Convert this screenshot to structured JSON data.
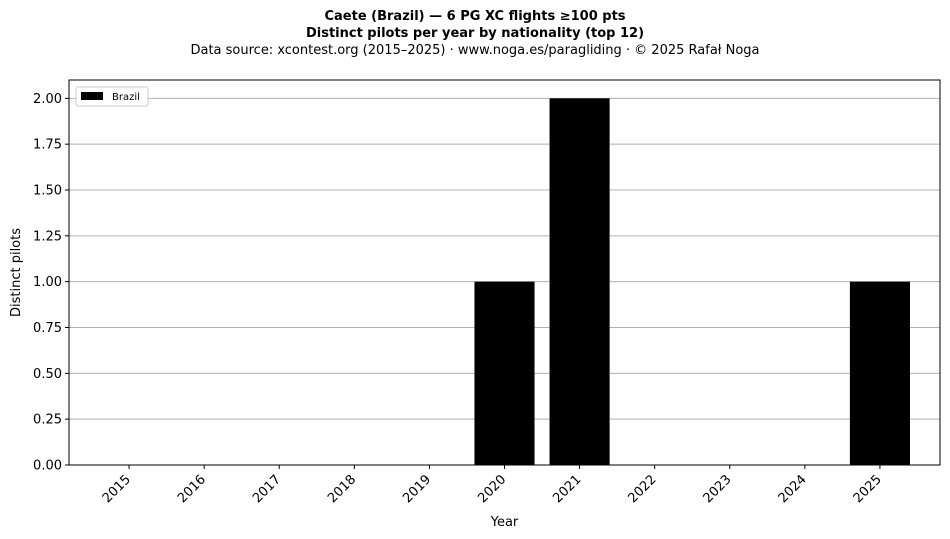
{
  "chart_data": {
    "type": "bar",
    "title": "Caete (Brazil)  —  6 PG XC flights ≥100 pts",
    "subtitle": "Distinct pilots per year by nationality (top 12)",
    "source_line": "Data source: xcontest.org (2015–2025)  ·  www.noga.es/paragliding  ·  © 2025 Rafał Noga",
    "xlabel": "Year",
    "ylabel": "Distinct pilots",
    "categories": [
      "2015",
      "2016",
      "2017",
      "2018",
      "2019",
      "2020",
      "2021",
      "2022",
      "2023",
      "2024",
      "2025"
    ],
    "series": [
      {
        "name": "Brazil",
        "color": "#000000",
        "values": [
          0,
          0,
          0,
          0,
          0,
          1,
          2,
          0,
          0,
          0,
          1
        ]
      }
    ],
    "ylim": [
      0,
      2.1
    ],
    "yticks": [
      "0.00",
      "0.25",
      "0.50",
      "0.75",
      "1.00",
      "1.25",
      "1.50",
      "1.75",
      "2.00"
    ],
    "grid": "y",
    "legend_position": "top-left"
  }
}
